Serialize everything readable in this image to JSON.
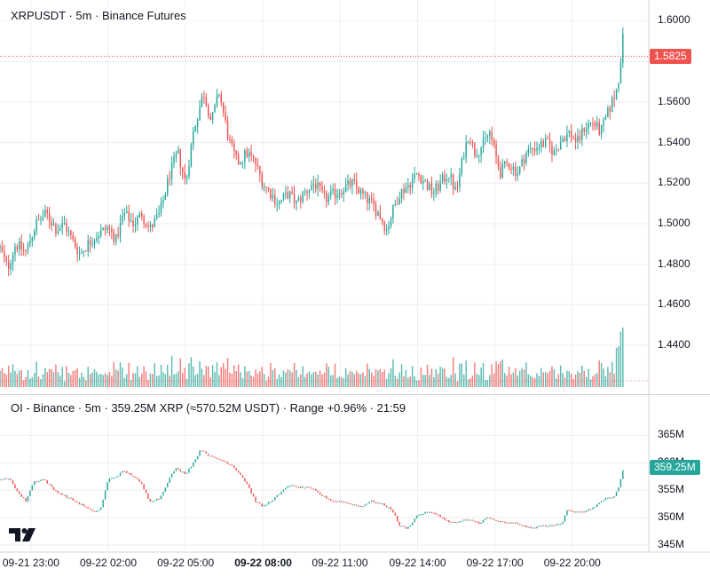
{
  "price_panel": {
    "legend": "XRPUSDT · 5m · Binance Futures",
    "last_price_label": "1.5825",
    "last_price": 1.5825,
    "up_color": "#26a69a",
    "down_color": "#ef5350",
    "last_price_color": "#ef5350"
  },
  "oi_panel": {
    "legend": "OI - Binance · 5m · 359.25M XRP (≈570.52M USDT) · Range +0.96% · 21:59",
    "last_value_label": "359.25M",
    "last_value": 359.25,
    "tag_color": "#26a69a"
  },
  "logo_icon": "tradingview-logo-icon",
  "chart_data": [
    {
      "type": "candlestick",
      "title": "XRPUSDT · 5m · Binance Futures",
      "ylim": [
        1.43,
        1.605
      ],
      "y_ticks": [
        "1.6000",
        "1.5800",
        "1.5600",
        "1.5400",
        "1.5200",
        "1.5000",
        "1.4800",
        "1.4600",
        "1.4400"
      ],
      "y_tick_values": [
        1.6,
        1.58,
        1.56,
        1.54,
        1.52,
        1.5,
        1.48,
        1.46,
        1.44
      ],
      "x_ticks": [
        "09-21 23:00",
        "09-22 02:00",
        "09-22 05:00",
        "09-22 08:00",
        "09-22 11:00",
        "09-22 14:00",
        "09-22 17:00",
        "09-22 20:00"
      ],
      "x_tick_hours": [
        0,
        3,
        6,
        9,
        12,
        15,
        18,
        21
      ],
      "x_tick_bold": "09-22 08:00",
      "start_hour": -1.2,
      "end_hour": 23.97,
      "bar_hours": 0.08333,
      "anchors": [
        [
          -1.2,
          1.488
        ],
        [
          -0.9,
          1.478
        ],
        [
          -0.6,
          1.49
        ],
        [
          -0.2,
          1.486
        ],
        [
          0.2,
          1.5
        ],
        [
          0.6,
          1.505
        ],
        [
          1.0,
          1.497
        ],
        [
          1.3,
          1.5
        ],
        [
          1.6,
          1.492
        ],
        [
          1.9,
          1.485
        ],
        [
          2.2,
          1.49
        ],
        [
          2.6,
          1.495
        ],
        [
          3.0,
          1.498
        ],
        [
          3.3,
          1.492
        ],
        [
          3.6,
          1.505
        ],
        [
          4.0,
          1.5
        ],
        [
          4.3,
          1.505
        ],
        [
          4.6,
          1.497
        ],
        [
          5.0,
          1.505
        ],
        [
          5.4,
          1.525
        ],
        [
          5.7,
          1.535
        ],
        [
          6.0,
          1.52
        ],
        [
          6.3,
          1.545
        ],
        [
          6.7,
          1.565
        ],
        [
          7.0,
          1.55
        ],
        [
          7.3,
          1.565
        ],
        [
          7.7,
          1.54
        ],
        [
          8.0,
          1.53
        ],
        [
          8.4,
          1.535
        ],
        [
          8.7,
          1.53
        ],
        [
          9.0,
          1.52
        ],
        [
          9.3,
          1.515
        ],
        [
          9.6,
          1.51
        ],
        [
          10.0,
          1.515
        ],
        [
          10.3,
          1.51
        ],
        [
          10.6,
          1.515
        ],
        [
          11.0,
          1.52
        ],
        [
          11.4,
          1.512
        ],
        [
          11.8,
          1.515
        ],
        [
          12.2,
          1.518
        ],
        [
          12.5,
          1.52
        ],
        [
          12.8,
          1.515
        ],
        [
          13.2,
          1.51
        ],
        [
          13.5,
          1.505
        ],
        [
          13.8,
          1.497
        ],
        [
          14.0,
          1.505
        ],
        [
          14.3,
          1.515
        ],
        [
          14.7,
          1.52
        ],
        [
          15.0,
          1.525
        ],
        [
          15.3,
          1.52
        ],
        [
          15.6,
          1.515
        ],
        [
          15.9,
          1.52
        ],
        [
          16.2,
          1.525
        ],
        [
          16.5,
          1.515
        ],
        [
          16.8,
          1.535
        ],
        [
          17.0,
          1.545
        ],
        [
          17.2,
          1.535
        ],
        [
          17.5,
          1.538
        ],
        [
          17.8,
          1.545
        ],
        [
          18.0,
          1.535
        ],
        [
          18.2,
          1.525
        ],
        [
          18.5,
          1.53
        ],
        [
          18.9,
          1.525
        ],
        [
          19.2,
          1.535
        ],
        [
          19.6,
          1.538
        ],
        [
          20.0,
          1.54
        ],
        [
          20.3,
          1.535
        ],
        [
          20.6,
          1.542
        ],
        [
          20.9,
          1.545
        ],
        [
          21.2,
          1.54
        ],
        [
          21.5,
          1.548
        ],
        [
          21.8,
          1.55
        ],
        [
          22.1,
          1.545
        ],
        [
          22.4,
          1.555
        ],
        [
          22.7,
          1.565
        ],
        [
          22.85,
          1.575
        ],
        [
          22.95,
          1.595
        ],
        [
          23.0,
          1.5825
        ]
      ],
      "volume_ylim": [
        0,
        100
      ]
    },
    {
      "type": "candlestick",
      "title": "OI - Binance · 5m · 359.25M XRP (≈570.52M USDT) · Range +0.96% · 21:59",
      "ylim": [
        344.5,
        367
      ],
      "y_ticks": [
        "365M",
        "360M",
        "355M",
        "350M",
        "345M"
      ],
      "y_tick_values": [
        365,
        360,
        355,
        350,
        345
      ],
      "anchors": [
        [
          -1.2,
          357.0
        ],
        [
          -0.8,
          357.0
        ],
        [
          -0.5,
          354.5
        ],
        [
          -0.2,
          353.0
        ],
        [
          0.1,
          356.5
        ],
        [
          0.5,
          357.0
        ],
        [
          0.9,
          355.0
        ],
        [
          1.3,
          354.0
        ],
        [
          1.7,
          353.0
        ],
        [
          2.1,
          352.0
        ],
        [
          2.4,
          351.0
        ],
        [
          2.7,
          351.5
        ],
        [
          3.0,
          357.0
        ],
        [
          3.3,
          357.5
        ],
        [
          3.6,
          358.5
        ],
        [
          4.0,
          357.5
        ],
        [
          4.3,
          356.0
        ],
        [
          4.6,
          353.0
        ],
        [
          5.0,
          353.5
        ],
        [
          5.3,
          356.5
        ],
        [
          5.6,
          359.0
        ],
        [
          6.0,
          358.0
        ],
        [
          6.3,
          360.0
        ],
        [
          6.6,
          362.5
        ],
        [
          7.0,
          361.0
        ],
        [
          7.4,
          360.5
        ],
        [
          7.8,
          359.5
        ],
        [
          8.1,
          358.0
        ],
        [
          8.4,
          356.0
        ],
        [
          8.7,
          353.0
        ],
        [
          9.0,
          352.0
        ],
        [
          9.3,
          353.0
        ],
        [
          9.7,
          354.5
        ],
        [
          10.0,
          356.0
        ],
        [
          10.3,
          355.5
        ],
        [
          10.7,
          355.5
        ],
        [
          11.0,
          355.0
        ],
        [
          11.3,
          354.0
        ],
        [
          11.7,
          353.0
        ],
        [
          12.0,
          353.0
        ],
        [
          12.4,
          352.5
        ],
        [
          12.8,
          352.0
        ],
        [
          13.2,
          353.0
        ],
        [
          13.6,
          352.5
        ],
        [
          14.0,
          351.5
        ],
        [
          14.3,
          348.5
        ],
        [
          14.6,
          348.0
        ],
        [
          15.0,
          350.5
        ],
        [
          15.4,
          351.0
        ],
        [
          15.8,
          350.5
        ],
        [
          16.1,
          349.5
        ],
        [
          16.4,
          349.0
        ],
        [
          16.8,
          349.5
        ],
        [
          17.1,
          349.5
        ],
        [
          17.4,
          349.0
        ],
        [
          17.7,
          350.0
        ],
        [
          18.0,
          349.5
        ],
        [
          18.4,
          349.0
        ],
        [
          18.8,
          349.0
        ],
        [
          19.1,
          348.5
        ],
        [
          19.4,
          348.0
        ],
        [
          19.8,
          348.5
        ],
        [
          20.2,
          348.5
        ],
        [
          20.6,
          349.0
        ],
        [
          20.8,
          351.5
        ],
        [
          21.1,
          351.0
        ],
        [
          21.4,
          351.0
        ],
        [
          21.7,
          351.5
        ],
        [
          22.0,
          352.5
        ],
        [
          22.3,
          353.5
        ],
        [
          22.6,
          353.5
        ],
        [
          22.8,
          355.5
        ],
        [
          23.0,
          359.25
        ]
      ]
    }
  ]
}
